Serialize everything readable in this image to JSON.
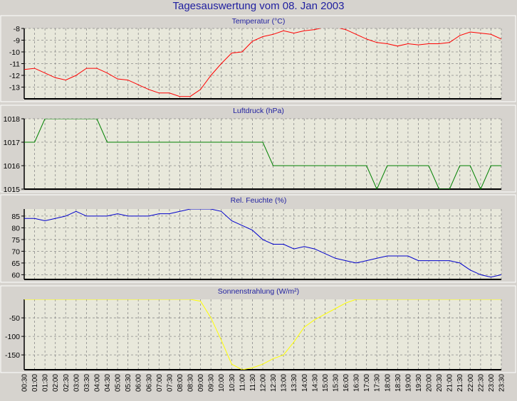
{
  "title": "Tagesauswertung vom 08. Jan 2003",
  "colors": {
    "background": "#D6D3CE",
    "plot": "#E8E8DB",
    "title": "#1f1fa0",
    "grid": "#8a8a8a"
  },
  "x_tick_labels": [
    "00:30",
    "01:00",
    "01:30",
    "02:00",
    "02:30",
    "03:00",
    "03:30",
    "04:00",
    "04:30",
    "05:00",
    "05:30",
    "06:00",
    "06:30",
    "07:00",
    "07:30",
    "08:00",
    "08:30",
    "09:00",
    "09:30",
    "10:00",
    "10:30",
    "11:00",
    "11:30",
    "12:00",
    "12:30",
    "13:00",
    "13:30",
    "14:00",
    "14:30",
    "15:00",
    "15:30",
    "16:00",
    "16:30",
    "17:00",
    "17:30",
    "18:00",
    "18:30",
    "19:00",
    "19:30",
    "20:00",
    "20:30",
    "21:00",
    "21:30",
    "22:00",
    "22:30",
    "23:00",
    "23:30"
  ],
  "chart_data": [
    {
      "type": "line",
      "title": "Temperatur (°C)",
      "color": "#FF0000",
      "ylim": [
        -14,
        -8
      ],
      "yticks": [
        -13,
        -12,
        -11,
        -10,
        -9,
        -8
      ],
      "values": [
        -11.5,
        -11.4,
        -11.8,
        -12.2,
        -12.4,
        -12.0,
        -11.4,
        -11.4,
        -11.8,
        -12.3,
        -12.4,
        -12.8,
        -13.2,
        -13.5,
        -13.5,
        -13.8,
        -13.8,
        -13.2,
        -12.0,
        -11.0,
        -10.1,
        -10.0,
        -9.1,
        -8.7,
        -8.5,
        -8.2,
        -8.4,
        -8.2,
        -8.1,
        -7.9,
        -7.9,
        -8.1,
        -8.5,
        -8.9,
        -9.2,
        -9.3,
        -9.5,
        -9.3,
        -9.4,
        -9.3,
        -9.3,
        -9.2,
        -8.6,
        -8.3,
        -8.4,
        -8.5,
        -8.9
      ]
    },
    {
      "type": "line",
      "title": "Luftdruck (hPa)",
      "color": "#008000",
      "ylim": [
        1015,
        1018
      ],
      "yticks": [
        1015,
        1016,
        1017,
        1018
      ],
      "values": [
        1017,
        1017,
        1018,
        1018,
        1018,
        1018,
        1018,
        1018,
        1017,
        1017,
        1017,
        1017,
        1017,
        1017,
        1017,
        1017,
        1017,
        1017,
        1017,
        1017,
        1017,
        1017,
        1017,
        1017,
        1016,
        1016,
        1016,
        1016,
        1016,
        1016,
        1016,
        1016,
        1016,
        1016,
        1015,
        1016,
        1016,
        1016,
        1016,
        1016,
        1015,
        1015,
        1016,
        1016,
        1015,
        1016,
        1016
      ]
    },
    {
      "type": "line",
      "title": "Rel. Feuchte (%)",
      "color": "#0000CC",
      "ylim": [
        58,
        88
      ],
      "yticks": [
        60,
        65,
        70,
        75,
        80,
        85
      ],
      "values": [
        84,
        84,
        83,
        84,
        85,
        87,
        85,
        85,
        85,
        86,
        85,
        85,
        85,
        86,
        86,
        87,
        88,
        88,
        88,
        87,
        83,
        81,
        79,
        75,
        73,
        73,
        71,
        72,
        71,
        69,
        67,
        66,
        65,
        66,
        67,
        68,
        68,
        68,
        66,
        66,
        66,
        66,
        65,
        62,
        60,
        59,
        60
      ]
    },
    {
      "type": "line",
      "title": "Sonnenstrahlung (W/m²)",
      "color": "#FFFF00",
      "ylim": [
        -190,
        0
      ],
      "yticks": [
        -150,
        -100,
        -50
      ],
      "values": [
        0,
        0,
        0,
        0,
        0,
        0,
        0,
        0,
        0,
        0,
        0,
        0,
        0,
        0,
        0,
        0,
        0,
        -5,
        -50,
        -110,
        -175,
        -190,
        -185,
        -175,
        -160,
        -150,
        -115,
        -75,
        -55,
        -40,
        -25,
        -10,
        0,
        0,
        0,
        0,
        0,
        0,
        0,
        0,
        0,
        0,
        0,
        0,
        0,
        0,
        0
      ]
    }
  ]
}
